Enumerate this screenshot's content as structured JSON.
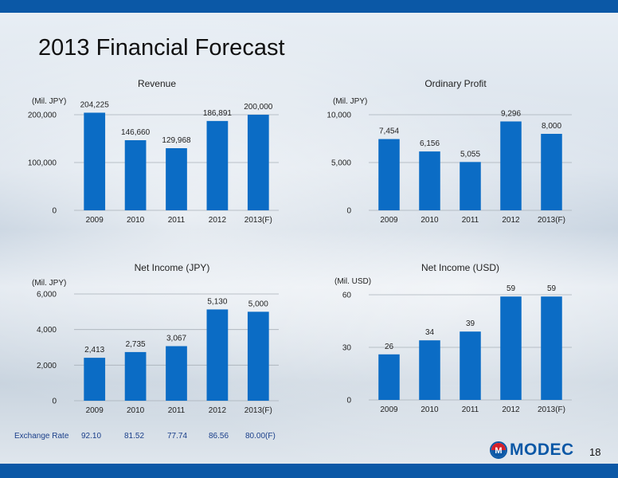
{
  "title": "2013 Financial Forecast",
  "page_number": "18",
  "logo": {
    "text": "MODEC"
  },
  "exchange": {
    "label": "Exchange Rate",
    "values": [
      "92.10",
      "81.52",
      "77.74",
      "86.56",
      "80.00(F)"
    ]
  },
  "chart_data": [
    {
      "type": "bar",
      "title": "Revenue",
      "unit_label": "(Mil. JPY)",
      "categories": [
        "2009",
        "2010",
        "2011",
        "2012",
        "2013(F)"
      ],
      "values": [
        204225,
        146660,
        129968,
        186891,
        200000
      ],
      "value_labels": [
        "204,225",
        "146,660",
        "129,968",
        "186,891",
        "200,000"
      ],
      "ylim": [
        0,
        200000
      ],
      "yticks": [
        0,
        100000,
        200000
      ],
      "ytick_labels": [
        "0",
        "100,000",
        "200,000"
      ],
      "color": "#0b6cc5",
      "grid": true
    },
    {
      "type": "bar",
      "title": "Ordinary Profit",
      "unit_label": "(Mil. JPY)",
      "categories": [
        "2009",
        "2010",
        "2011",
        "2012",
        "2013(F)"
      ],
      "values": [
        7454,
        6156,
        5055,
        9296,
        8000
      ],
      "value_labels": [
        "7,454",
        "6,156",
        "5,055",
        "9,296",
        "8,000"
      ],
      "ylim": [
        0,
        10000
      ],
      "yticks": [
        0,
        5000,
        10000
      ],
      "ytick_labels": [
        "0",
        "5,000",
        "10,000"
      ],
      "color": "#0b6cc5",
      "grid": true
    },
    {
      "type": "bar",
      "title": "Net Income (JPY)",
      "unit_label": "(Mil. JPY)",
      "categories": [
        "2009",
        "2010",
        "2011",
        "2012",
        "2013(F)"
      ],
      "values": [
        2413,
        2735,
        3067,
        5130,
        5000
      ],
      "value_labels": [
        "2,413",
        "2,735",
        "3,067",
        "5,130",
        "5,000"
      ],
      "ylim": [
        0,
        6000
      ],
      "yticks": [
        0,
        2000,
        4000,
        6000
      ],
      "ytick_labels": [
        "0",
        "2,000",
        "4,000",
        "6,000"
      ],
      "color": "#0b6cc5",
      "grid": true
    },
    {
      "type": "bar",
      "title": "Net Income (USD)",
      "unit_label": "(Mil. USD)",
      "categories": [
        "2009",
        "2010",
        "2011",
        "2012",
        "2013(F)"
      ],
      "values": [
        26,
        34,
        39,
        59,
        59
      ],
      "value_labels": [
        "26",
        "34",
        "39",
        "59",
        "59"
      ],
      "ylim": [
        0,
        60
      ],
      "yticks": [
        0,
        30,
        60
      ],
      "ytick_labels": [
        "0",
        "30",
        "60"
      ],
      "color": "#0b6cc5",
      "grid": true
    }
  ]
}
